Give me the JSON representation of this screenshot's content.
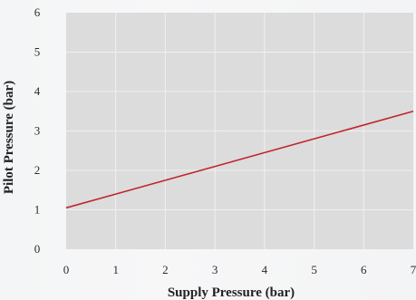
{
  "chart_data": {
    "type": "line",
    "title": "",
    "xlabel": "Supply Pressure (bar)",
    "ylabel": "Pilot Pressure (bar)",
    "xlim": [
      0,
      7
    ],
    "ylim": [
      0,
      6
    ],
    "x_ticks": [
      "0",
      "1",
      "2",
      "3",
      "4",
      "5",
      "6",
      "7"
    ],
    "y_ticks": [
      "0",
      "1",
      "2",
      "3",
      "4",
      "5",
      "6"
    ],
    "grid": true,
    "series": [
      {
        "x": [
          0,
          7
        ],
        "y": [
          1.05,
          3.5
        ]
      }
    ],
    "colors": {
      "line": "#c0262d",
      "plot_bg": "#dcdcdc",
      "grid": "#f0f0f0"
    }
  }
}
